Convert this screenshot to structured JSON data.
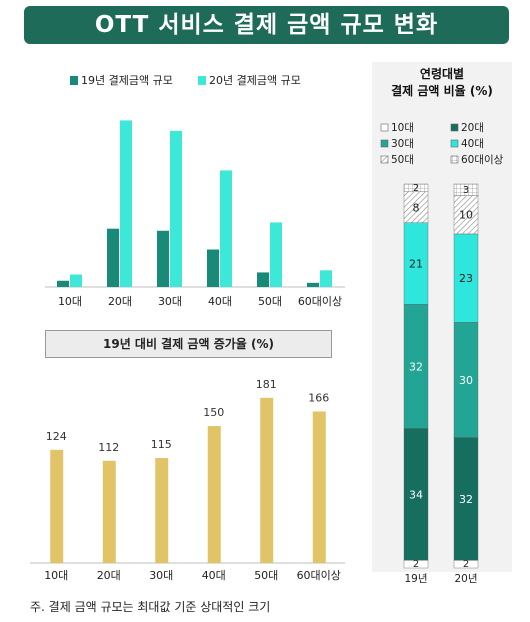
{
  "title": "OTT 서비스 결제 금액 규모 변화",
  "note": "주. 결제 금액 규모는 최대값 기준 상대적인 크기",
  "colors": {
    "dark": "#1a8a78",
    "light": "#3ee8d8",
    "gold": "#e2c468",
    "green": "#1f6b5a",
    "c10": "#ffffff",
    "c20": "#166e5f",
    "c30": "#22a594",
    "c40": "#2ee6dc",
    "c50": "#d9d9d9",
    "c60": "#f4f4f4"
  },
  "chart_data": [
    {
      "type": "bar",
      "categories": [
        "10대",
        "20대",
        "30대",
        "40대",
        "50대",
        "60대이상"
      ],
      "series": [
        {
          "name": "19년 결제금액 규모",
          "values": [
            3,
            28,
            27,
            18,
            7,
            2
          ]
        },
        {
          "name": "20년 결제금액 규모",
          "values": [
            6,
            80,
            75,
            56,
            31,
            8
          ]
        }
      ],
      "ylim": [
        0,
        85
      ]
    },
    {
      "type": "bar",
      "title": "19년 대비 결제 금액 증가율 (%)",
      "categories": [
        "10대",
        "20대",
        "30대",
        "40대",
        "50대",
        "60대이상"
      ],
      "values": [
        124,
        112,
        115,
        150,
        181,
        166
      ],
      "ylim": [
        0,
        195
      ]
    },
    {
      "type": "bar",
      "title_lines": [
        "연령대별",
        "결제 금액 비율 (%)"
      ],
      "categories": [
        "19년",
        "20년"
      ],
      "legend": [
        "10대",
        "20대",
        "30대",
        "40대",
        "50대",
        "60대이상"
      ],
      "series": [
        {
          "name": "10대",
          "values": [
            2,
            2
          ]
        },
        {
          "name": "20대",
          "values": [
            34,
            32
          ]
        },
        {
          "name": "30대",
          "values": [
            32,
            30
          ]
        },
        {
          "name": "40대",
          "values": [
            21,
            23
          ]
        },
        {
          "name": "50대",
          "values": [
            8,
            10
          ]
        },
        {
          "name": "60대이상",
          "values": [
            2,
            3
          ]
        }
      ]
    }
  ]
}
